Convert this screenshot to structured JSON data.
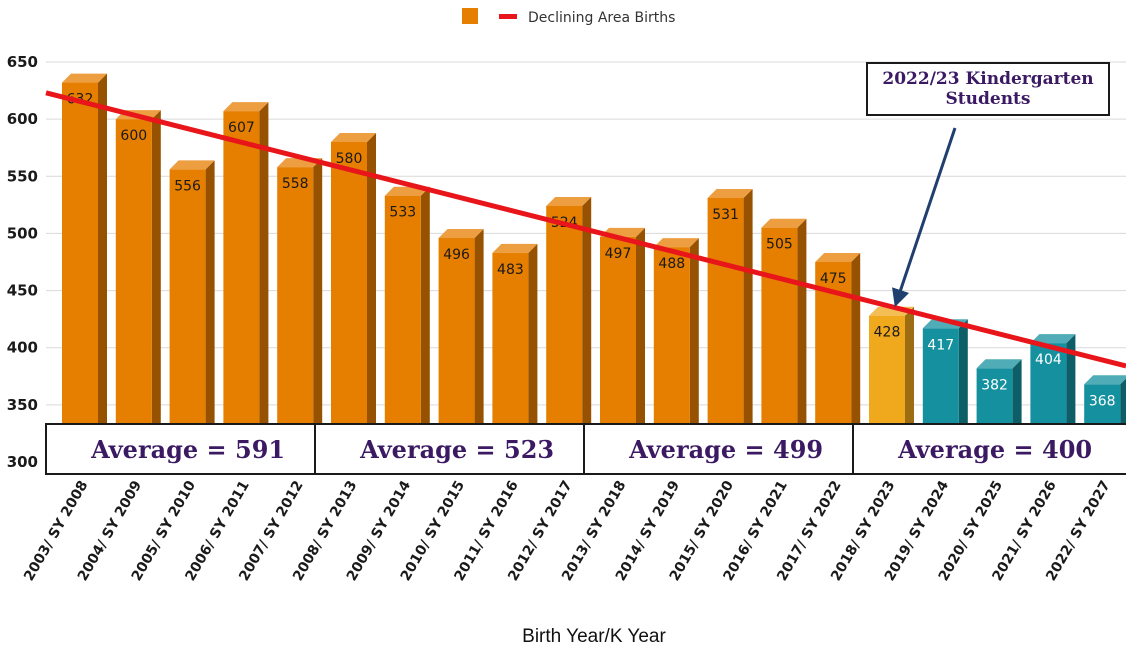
{
  "chart_data": {
    "type": "bar",
    "title": "",
    "xlabel": "Birth Year/K Year",
    "ylabel": "",
    "ylim": [
      300,
      650
    ],
    "yticks": [
      300,
      350,
      400,
      450,
      500,
      550,
      600,
      650
    ],
    "grid": true,
    "legend": {
      "position": "top-center",
      "entries": [
        "Declining Area Births"
      ]
    },
    "categories": [
      "2003/ SY 2008",
      "2004/ SY 2009",
      "2005/ SY 2010",
      "2006/ SY 2011",
      "2007/ SY 2012",
      "2008/ SY 2013",
      "2009/ SY 2014",
      "2010/ SY 2015",
      "2011/ SY 2016",
      "2012/ SY 2017",
      "2013/ SY 2018",
      "2014/ SY 2019",
      "2015/ SY 2020",
      "2016/ SY 2021",
      "2017/ SY 2022",
      "2018/ SY 2023",
      "2019/ SY 2024",
      "2020/ SY 2025",
      "2021/ SY 2026",
      "2022/ SY 2027"
    ],
    "values": [
      632,
      600,
      556,
      607,
      558,
      580,
      533,
      496,
      483,
      524,
      497,
      488,
      531,
      505,
      475,
      428,
      417,
      382,
      404,
      368
    ],
    "trendline": {
      "name": "Declining Area Births",
      "start": 623,
      "end": 384,
      "color": "#e8161b"
    },
    "colors": {
      "past": "#e67e00",
      "current": "#f0a81c",
      "future": "#15909e"
    },
    "color_groups": {
      "past": [
        0,
        14
      ],
      "current": [
        15,
        15
      ],
      "future": [
        16,
        19
      ]
    },
    "annotations": {
      "averages": [
        {
          "text": "Average = 591",
          "from": 0,
          "to": 4
        },
        {
          "text": "Average = 523",
          "from": 5,
          "to": 9
        },
        {
          "text": "Average = 499",
          "from": 10,
          "to": 14
        },
        {
          "text": "Average = 400",
          "from": 15,
          "to": 19
        }
      ],
      "callout": {
        "text": "2022/23 Kindergarten Students",
        "points_to": 15
      }
    }
  }
}
